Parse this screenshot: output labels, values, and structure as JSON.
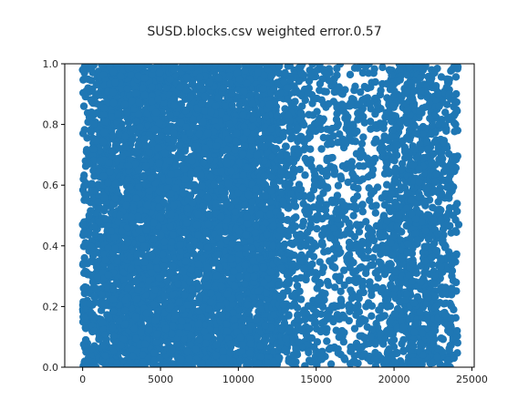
{
  "chart_data": {
    "type": "scatter",
    "title": "SUSD.blocks.csv weighted error.0.57",
    "xlabel": "",
    "ylabel": "",
    "xlim": [
      -1150,
      25150
    ],
    "ylim": [
      0.0,
      1.0
    ],
    "xticks": [
      0,
      5000,
      10000,
      15000,
      20000,
      25000
    ],
    "xtick_labels": [
      "0",
      "5000",
      "10000",
      "15000",
      "20000",
      "25000"
    ],
    "yticks": [
      0.0,
      0.2,
      0.4,
      0.6,
      0.8,
      1.0
    ],
    "ytick_labels": [
      "0.0",
      "0.2",
      "0.4",
      "0.6",
      "0.8",
      "1.0"
    ],
    "grid": false,
    "legend": "none",
    "marker_color": "#1f77b4",
    "density_regions": [
      {
        "x_range": [
          0,
          500
        ],
        "relative_density": 0.35
      },
      {
        "x_range": [
          500,
          1300
        ],
        "relative_density": 0.5
      },
      {
        "x_range": [
          1300,
          12600
        ],
        "relative_density": 1.0
      },
      {
        "x_range": [
          12600,
          13800
        ],
        "relative_density": 0.45
      },
      {
        "x_range": [
          13800,
          19500
        ],
        "relative_density": 0.25
      },
      {
        "x_range": [
          19500,
          20800
        ],
        "relative_density": 0.45
      },
      {
        "x_range": [
          20800,
          22500
        ],
        "relative_density": 0.6
      },
      {
        "x_range": [
          22500,
          24100
        ],
        "relative_density": 0.35
      }
    ],
    "series": [
      {
        "points": [
          [
            0,
            0.98
          ],
          [
            100,
            0.95
          ],
          [
            50,
            0.62
          ],
          [
            0,
            0.47
          ],
          [
            120,
            0.36
          ],
          [
            60,
            0.26
          ],
          [
            150,
            0.16
          ],
          [
            200,
            0.09
          ],
          [
            80,
            0.86
          ],
          [
            30,
            0.77
          ],
          [
            250,
            0.71
          ],
          [
            300,
            0.55
          ],
          [
            180,
            0.41
          ],
          [
            90,
            0.31
          ],
          [
            220,
            0.05
          ],
          [
            350,
            0.92
          ],
          [
            400,
            0.67
          ],
          [
            450,
            0.21
          ],
          [
            420,
            0.5
          ],
          [
            380,
            0.02
          ],
          [
            600,
            0.99
          ],
          [
            700,
            0.8
          ],
          [
            650,
            0.58
          ],
          [
            800,
            0.44
          ],
          [
            750,
            0.12
          ],
          [
            900,
            0.33
          ],
          [
            1000,
            0.9
          ],
          [
            1100,
            0.68
          ],
          [
            1200,
            0.24
          ],
          [
            1050,
            0.48
          ],
          [
            13000,
            0.97
          ],
          [
            13200,
            0.83
          ],
          [
            13100,
            0.7
          ],
          [
            13400,
            0.57
          ],
          [
            13300,
            0.45
          ],
          [
            13500,
            0.34
          ],
          [
            13600,
            0.21
          ],
          [
            13250,
            0.12
          ],
          [
            13700,
            0.06
          ],
          [
            13150,
            0.63
          ],
          [
            14000,
            0.99
          ],
          [
            14300,
            0.88
          ],
          [
            14600,
            0.76
          ],
          [
            14900,
            0.6
          ],
          [
            15200,
            0.52
          ],
          [
            15500,
            0.38
          ],
          [
            15800,
            0.27
          ],
          [
            16100,
            0.15
          ],
          [
            16400,
            0.06
          ],
          [
            16700,
            0.9
          ],
          [
            17000,
            0.8
          ],
          [
            17300,
            0.66
          ],
          [
            17600,
            0.47
          ],
          [
            17900,
            0.33
          ],
          [
            18200,
            0.2
          ],
          [
            18500,
            0.1
          ],
          [
            18800,
            0.94
          ],
          [
            19100,
            0.72
          ],
          [
            19300,
            0.43
          ],
          [
            19400,
            0.17
          ],
          [
            15000,
            0.18
          ],
          [
            16000,
            0.55
          ],
          [
            17500,
            0.29
          ],
          [
            18000,
            0.7
          ],
          [
            14500,
            0.42
          ],
          [
            16800,
            0.03
          ],
          [
            15400,
            0.95
          ],
          [
            18700,
            0.58
          ],
          [
            17200,
            0.87
          ],
          [
            19000,
            0.04
          ],
          [
            19700,
            0.98
          ],
          [
            19900,
            0.83
          ],
          [
            20100,
            0.64
          ],
          [
            20300,
            0.5
          ],
          [
            20500,
            0.36
          ],
          [
            20700,
            0.22
          ],
          [
            20000,
            0.09
          ],
          [
            20200,
            0.73
          ],
          [
            20600,
            0.13
          ],
          [
            19800,
            0.41
          ],
          [
            21000,
            0.99
          ],
          [
            21200,
            0.88
          ],
          [
            21400,
            0.77
          ],
          [
            21600,
            0.61
          ],
          [
            21800,
            0.48
          ],
          [
            22000,
            0.35
          ],
          [
            22200,
            0.23
          ],
          [
            22400,
            0.11
          ],
          [
            21300,
            0.02
          ],
          [
            21900,
            0.69
          ],
          [
            21100,
            0.55
          ],
          [
            21500,
            0.42
          ],
          [
            21700,
            0.28
          ],
          [
            22100,
            0.16
          ],
          [
            22300,
            0.82
          ],
          [
            21250,
            0.07
          ],
          [
            21650,
            0.93
          ],
          [
            22050,
            0.59
          ],
          [
            21450,
            0.31
          ],
          [
            21850,
            0.04
          ],
          [
            22600,
            0.97
          ],
          [
            22900,
            0.86
          ],
          [
            23200,
            0.74
          ],
          [
            23500,
            0.62
          ],
          [
            23800,
            0.5
          ],
          [
            24000,
            0.37
          ],
          [
            23700,
            0.26
          ],
          [
            23400,
            0.14
          ],
          [
            23100,
            0.05
          ],
          [
            22800,
            0.44
          ],
          [
            24100,
            0.99
          ],
          [
            23950,
            0.8
          ],
          [
            23600,
            0.21
          ],
          [
            23300,
            0.66
          ],
          [
            23000,
            0.33
          ],
          [
            24050,
            0.12
          ],
          [
            22700,
            0.58
          ],
          [
            23850,
            0.03
          ],
          [
            23550,
            0.9
          ],
          [
            24150,
            0.47
          ]
        ]
      }
    ]
  }
}
